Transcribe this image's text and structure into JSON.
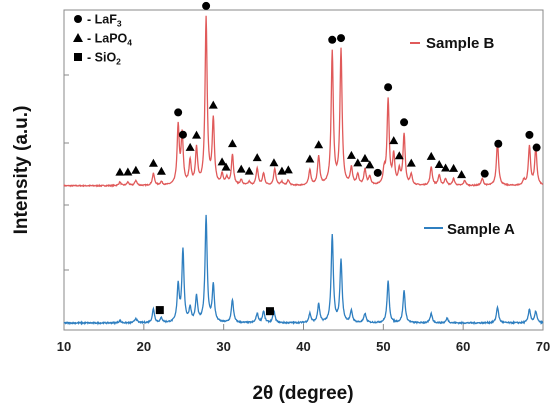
{
  "chart_data": {
    "type": "line",
    "xlabel": "2θ (degree)",
    "ylabel": "Intensity (a.u.)",
    "xlim": [
      10,
      70
    ],
    "xticks": [
      10,
      20,
      30,
      40,
      50,
      60,
      70
    ],
    "grid": false,
    "legend_markers": [
      {
        "symbol": "circle",
        "prefix": "- LaF",
        "sub": "3"
      },
      {
        "symbol": "triangle",
        "prefix": "- LaPO",
        "sub": "4"
      },
      {
        "symbol": "square",
        "prefix": "- SiO",
        "sub": "2"
      }
    ],
    "series": [
      {
        "name": "Sample B",
        "color": "#e05a5a",
        "baseline": 0.06,
        "peaks": [
          [
            17.0,
            0.02
          ],
          [
            18.0,
            0.02
          ],
          [
            19.0,
            0.03
          ],
          [
            21.2,
            0.07
          ],
          [
            22.2,
            0.02
          ],
          [
            24.3,
            0.34
          ],
          [
            24.8,
            0.29
          ],
          [
            25.8,
            0.14
          ],
          [
            26.6,
            0.21
          ],
          [
            27.8,
            0.98
          ],
          [
            28.7,
            0.38
          ],
          [
            29.8,
            0.06
          ],
          [
            30.4,
            0.04
          ],
          [
            31.1,
            0.18
          ],
          [
            32.2,
            0.03
          ],
          [
            33.2,
            0.02
          ],
          [
            34.2,
            0.1
          ],
          [
            35.0,
            0.07
          ],
          [
            36.4,
            0.1
          ],
          [
            37.3,
            0.02
          ],
          [
            38.1,
            0.03
          ],
          [
            40.8,
            0.09
          ],
          [
            41.9,
            0.17
          ],
          [
            43.6,
            0.78
          ],
          [
            44.7,
            0.79
          ],
          [
            46.0,
            0.1
          ],
          [
            46.8,
            0.06
          ],
          [
            47.7,
            0.09
          ],
          [
            48.3,
            0.05
          ],
          [
            50.1,
            0.08
          ],
          [
            50.6,
            0.5
          ],
          [
            51.3,
            0.17
          ],
          [
            52.0,
            0.08
          ],
          [
            52.6,
            0.3
          ],
          [
            53.5,
            0.06
          ],
          [
            56.0,
            0.11
          ],
          [
            57.0,
            0.06
          ],
          [
            57.8,
            0.04
          ],
          [
            58.8,
            0.04
          ],
          [
            60.2,
            0.03
          ],
          [
            62.4,
            0.04
          ],
          [
            64.3,
            0.26
          ],
          [
            67.6,
            0.03
          ],
          [
            68.3,
            0.23
          ],
          [
            69.1,
            0.22
          ]
        ],
        "markers": [
          {
            "symbol": "circle",
            "x": [
              24.3,
              24.9,
              27.8,
              43.6,
              44.7,
              49.3,
              50.6,
              52.6,
              62.7,
              64.4,
              68.3,
              69.2
            ]
          },
          {
            "symbol": "triangle",
            "x": [
              17.0,
              18.0,
              19.0,
              21.2,
              22.2,
              25.8,
              26.6,
              28.7,
              29.8,
              30.3,
              31.1,
              32.2,
              33.2,
              34.2,
              36.3,
              37.3,
              38.1,
              40.8,
              41.9,
              46.0,
              46.8,
              47.7,
              48.3,
              51.3,
              52.0,
              53.5,
              56.0,
              57.0,
              57.8,
              58.8,
              59.8
            ]
          }
        ]
      },
      {
        "name": "Sample A",
        "color": "#2f7fc0",
        "baseline": 0.0,
        "peaks": [
          [
            17.0,
            0.01
          ],
          [
            19.0,
            0.02
          ],
          [
            21.2,
            0.06
          ],
          [
            22.2,
            0.02
          ],
          [
            24.3,
            0.16
          ],
          [
            24.9,
            0.31
          ],
          [
            25.8,
            0.06
          ],
          [
            26.6,
            0.11
          ],
          [
            27.8,
            0.46
          ],
          [
            28.7,
            0.16
          ],
          [
            31.1,
            0.1
          ],
          [
            34.2,
            0.04
          ],
          [
            35.0,
            0.05
          ],
          [
            36.3,
            0.05
          ],
          [
            40.8,
            0.04
          ],
          [
            41.9,
            0.08
          ],
          [
            43.6,
            0.38
          ],
          [
            44.7,
            0.27
          ],
          [
            46.0,
            0.05
          ],
          [
            47.7,
            0.04
          ],
          [
            50.6,
            0.18
          ],
          [
            52.6,
            0.14
          ],
          [
            56.0,
            0.04
          ],
          [
            58.0,
            0.02
          ],
          [
            64.3,
            0.07
          ],
          [
            68.3,
            0.06
          ],
          [
            69.1,
            0.05
          ]
        ],
        "markers": [
          {
            "symbol": "square",
            "x": [
              22.0,
              35.8
            ]
          }
        ]
      }
    ]
  }
}
